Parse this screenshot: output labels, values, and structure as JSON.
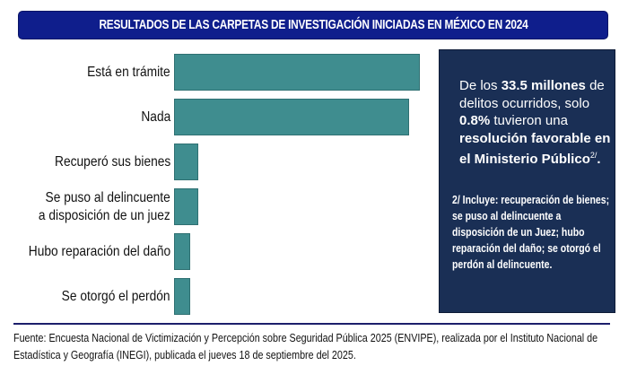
{
  "header": {
    "title": "RESULTADOS DE LAS CARPETAS DE INVESTIGACIÓN INICIADAS EN MÉXICO EN 2024"
  },
  "chart_data": {
    "type": "bar",
    "orientation": "horizontal",
    "title": "RESULTADOS DE LAS CARPETAS DE INVESTIGACIÓN INICIADAS EN MÉXICO EN 2024",
    "xlabel": "",
    "ylabel": "",
    "axis_values_shown": false,
    "grid": false,
    "legend": "none",
    "categories": [
      "Está en trámite",
      "Nada",
      "Recuperó sus bienes",
      "Se puso al delincuente\na disposición de un juez",
      "Hubo reparación del daño",
      "Se otorgó el perdón"
    ],
    "category_lines": [
      [
        "Está en trámite"
      ],
      [
        "Nada"
      ],
      [
        "Recuperó sus bienes"
      ],
      [
        "Se puso al delincuente",
        "a disposición de un juez"
      ],
      [
        "Hubo reparación del daño"
      ],
      [
        "Se otorgó el perdón"
      ]
    ],
    "values": [
      46.5,
      44.5,
      4.5,
      4.5,
      3.0,
      3.1
    ],
    "values_note": "Relative values estimated from bar lengths; no axis or data labels are printed.",
    "xlim": [
      0,
      47
    ],
    "bar_color": "#3f8d8f"
  },
  "info_box": {
    "main_parts": [
      {
        "text": "De los ",
        "bold": false
      },
      {
        "text": "33.5 millones",
        "bold": true
      },
      {
        "text": " de delitos ocurridos, solo ",
        "bold": false
      },
      {
        "text": "0.8%",
        "bold": true
      },
      {
        "text": " tuvieron una ",
        "bold": false
      },
      {
        "text": "resolución favorable en el Ministerio Público",
        "bold": true
      }
    ],
    "footnote_mark": "2/",
    "end_punct": ".",
    "note": "2/ Incluye: recuperación de bienes; se puso al delincuente a disposición de un Juez; hubo reparación del daño; se otorgó el perdón al delincuente.",
    "background": "#1a2f55"
  },
  "source": {
    "text": "Fuente: Encuesta Nacional de Victimización y Percepción sobre Seguridad Pública 2025 (ENVIPE), realizada por el Instituto Nacional de Estadística y Geografía (INEGI), publicada el jueves 18 de septiembre del 2025."
  },
  "colors": {
    "header_bg": "#0f1e8c",
    "bar": "#3f8d8f",
    "info_bg": "#1a2f55",
    "divider": "#1c1f6b"
  }
}
